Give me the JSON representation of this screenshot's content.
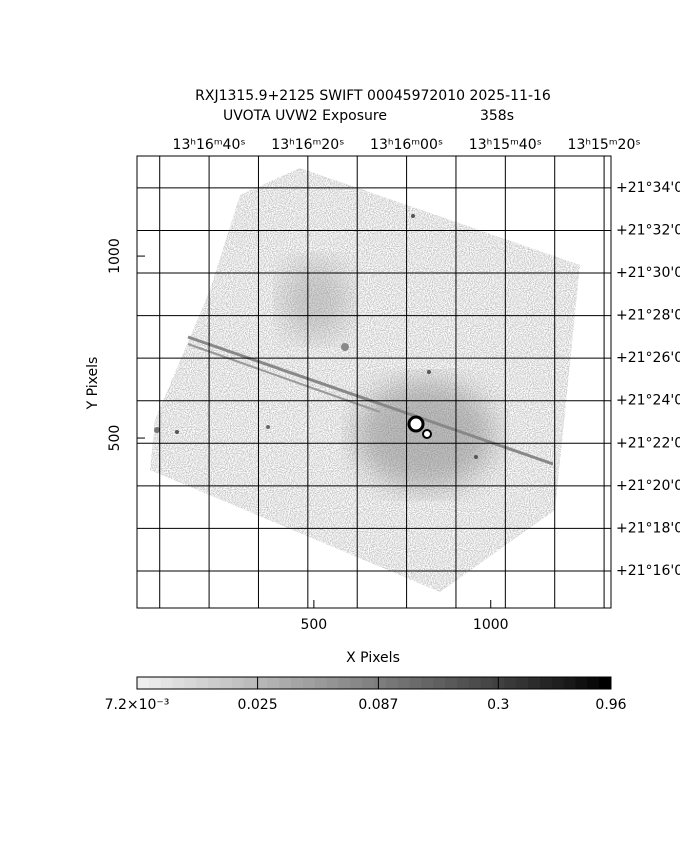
{
  "chart_data": {
    "type": "image",
    "title": "RXJ1315.9+2125 SWIFT 00045972010 2025-11-16",
    "subtitle": "UVOTA UVW2 Exposure",
    "exposure": "358s",
    "xlabel": "X Pixels",
    "ylabel": "Y Pixels",
    "xlim": [
      0,
      1340
    ],
    "ylim": [
      33,
      1275
    ],
    "xticks": [
      500,
      1000
    ],
    "yticks": [
      500,
      1000
    ],
    "x2lim": [
      1014.6,
      918.6
    ],
    "x2ticks": [
      {
        "value": 1000,
        "label": "13ʰ16ᵐ40ˢ"
      },
      {
        "value": 980,
        "label": "13ʰ16ᵐ20ˢ"
      },
      {
        "value": 960,
        "label": "13ʰ16ᵐ00ˢ"
      },
      {
        "value": 940,
        "label": "13ʰ15ᵐ40ˢ"
      },
      {
        "value": 920,
        "label": "13ʰ15ᵐ20ˢ"
      }
    ],
    "x2minor": [
      1010,
      990,
      970,
      950,
      930
    ],
    "y2lim": [
      14.26,
      35.5
    ],
    "y2ticks": [
      {
        "value": 16,
        "label": "+21°16'0"
      },
      {
        "value": 18,
        "label": "+21°18'0"
      },
      {
        "value": 20,
        "label": "+21°20'0"
      },
      {
        "value": 22,
        "label": "+21°22'0"
      },
      {
        "value": 24,
        "label": "+21°24'0"
      },
      {
        "value": 26,
        "label": "+21°26'0"
      },
      {
        "value": 28,
        "label": "+21°28'0"
      },
      {
        "value": 30,
        "label": "+21°30'0"
      },
      {
        "value": 32,
        "label": "+21°32'0"
      },
      {
        "value": 34,
        "label": "+21°34'0"
      }
    ],
    "grid": true,
    "colorbar": {
      "lim": [
        0.0072,
        0.96
      ],
      "log": true,
      "ticks": [
        {
          "value": 0.0072,
          "label": "7.2×10⁻³"
        },
        0.025,
        0.087,
        0.3,
        0.96
      ]
    }
  }
}
